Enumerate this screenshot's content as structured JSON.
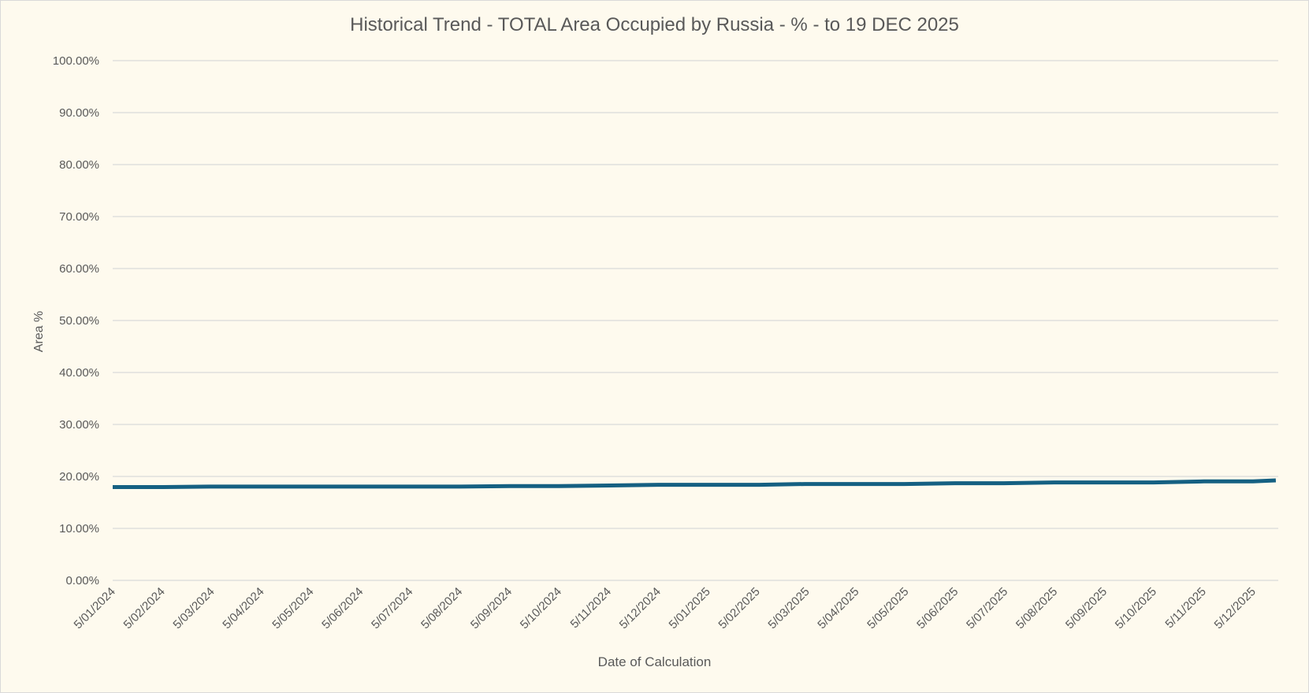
{
  "chart_data": {
    "type": "line",
    "title": "Historical Trend - TOTAL Area Occupied by Russia - % - to 19 DEC 2025",
    "xlabel": "Date of Calculation",
    "ylabel": "Area %",
    "ylim": [
      0,
      100
    ],
    "yticks": [
      "0.00%",
      "10.00%",
      "20.00%",
      "30.00%",
      "40.00%",
      "50.00%",
      "60.00%",
      "70.00%",
      "80.00%",
      "90.00%",
      "100.00%"
    ],
    "xticks": [
      "5/01/2024",
      "5/02/2024",
      "5/03/2024",
      "5/04/2024",
      "5/05/2024",
      "5/06/2024",
      "5/07/2024",
      "5/08/2024",
      "5/09/2024",
      "5/10/2024",
      "5/11/2024",
      "5/12/2024",
      "5/01/2025",
      "5/02/2025",
      "5/03/2025",
      "5/04/2025",
      "5/05/2025",
      "5/06/2025",
      "5/07/2025",
      "5/08/2025",
      "5/09/2025",
      "5/10/2025",
      "5/11/2025",
      "5/12/2025"
    ],
    "grid": true,
    "line_color": "#156082",
    "series": [
      {
        "x": [
          "2024-01-05",
          "2024-02-05",
          "2024-03-05",
          "2024-04-05",
          "2024-05-05",
          "2024-06-05",
          "2024-07-05",
          "2024-08-05",
          "2024-09-05",
          "2024-10-05",
          "2024-11-05",
          "2024-12-05",
          "2025-01-05",
          "2025-02-05",
          "2025-03-05",
          "2025-04-05",
          "2025-05-05",
          "2025-06-05",
          "2025-07-05",
          "2025-08-05",
          "2025-09-05",
          "2025-10-05",
          "2025-11-05",
          "2025-12-05",
          "2025-12-19"
        ],
        "y": [
          17.95,
          17.95,
          18.05,
          18.05,
          18.05,
          18.05,
          18.05,
          18.05,
          18.15,
          18.15,
          18.25,
          18.4,
          18.4,
          18.4,
          18.55,
          18.55,
          18.55,
          18.7,
          18.7,
          18.85,
          18.85,
          18.85,
          19.05,
          19.05,
          19.25
        ]
      }
    ]
  }
}
